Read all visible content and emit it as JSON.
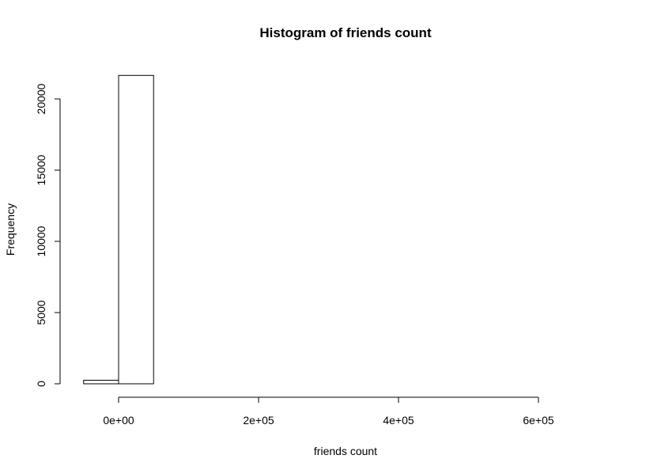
{
  "chart_data": {
    "type": "bar",
    "title": "Histogram of friends count",
    "xlabel": "friends count",
    "ylabel": "Frequency",
    "bins": [
      {
        "x0": -50000,
        "x1": 0,
        "count": 250
      },
      {
        "x0": 0,
        "x1": 50000,
        "count": 21650
      },
      {
        "x0": 50000,
        "x1": 100000,
        "count": 0
      },
      {
        "x0": 100000,
        "x1": 150000,
        "count": 0
      },
      {
        "x0": 150000,
        "x1": 200000,
        "count": 0
      },
      {
        "x0": 200000,
        "x1": 250000,
        "count": 0
      },
      {
        "x0": 250000,
        "x1": 300000,
        "count": 0
      },
      {
        "x0": 300000,
        "x1": 350000,
        "count": 0
      },
      {
        "x0": 350000,
        "x1": 400000,
        "count": 0
      },
      {
        "x0": 400000,
        "x1": 450000,
        "count": 0
      },
      {
        "x0": 450000,
        "x1": 500000,
        "count": 0
      },
      {
        "x0": 500000,
        "x1": 550000,
        "count": 0
      },
      {
        "x0": 550000,
        "x1": 600000,
        "count": 0
      },
      {
        "x0": 600000,
        "x1": 650000,
        "count": 0
      },
      {
        "x0": 650000,
        "x1": 700000,
        "count": 0
      }
    ],
    "xticks": [
      {
        "value": 0,
        "label": "0e+00"
      },
      {
        "value": 200000,
        "label": "2e+05"
      },
      {
        "value": 400000,
        "label": "4e+05"
      },
      {
        "value": 600000,
        "label": "6e+05"
      }
    ],
    "yticks": [
      {
        "value": 0,
        "label": "0"
      },
      {
        "value": 5000,
        "label": "5000"
      },
      {
        "value": 10000,
        "label": "10000"
      },
      {
        "value": 15000,
        "label": "15000"
      },
      {
        "value": 20000,
        "label": "20000"
      }
    ],
    "xlim": [
      -50000,
      700000
    ],
    "ylim": [
      0,
      21650
    ],
    "grid": false,
    "colors": {
      "bar_fill": "#ffffff",
      "bar_stroke": "#000000",
      "axis": "#000000",
      "background": "#ffffff"
    }
  }
}
